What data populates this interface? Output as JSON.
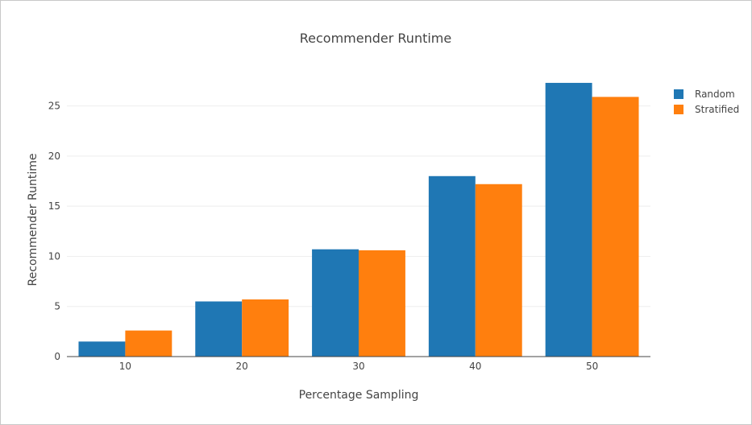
{
  "chart_data": {
    "type": "bar",
    "title": "Recommender Runtime",
    "xlabel": "Percentage Sampling",
    "ylabel": "Recommender Runtime",
    "categories": [
      "10",
      "20",
      "30",
      "40",
      "50"
    ],
    "yticks": [
      "0",
      "5",
      "10",
      "15",
      "20",
      "25"
    ],
    "ylim": [
      0,
      28.5
    ],
    "grid": true,
    "legend_position": "top-right",
    "series": [
      {
        "name": "Random",
        "color": "#1f77b4",
        "values": [
          1.5,
          5.5,
          10.7,
          18.0,
          27.3
        ]
      },
      {
        "name": "Stratified",
        "color": "#ff7f0e",
        "values": [
          2.6,
          5.7,
          10.6,
          17.2,
          25.9
        ]
      }
    ]
  }
}
